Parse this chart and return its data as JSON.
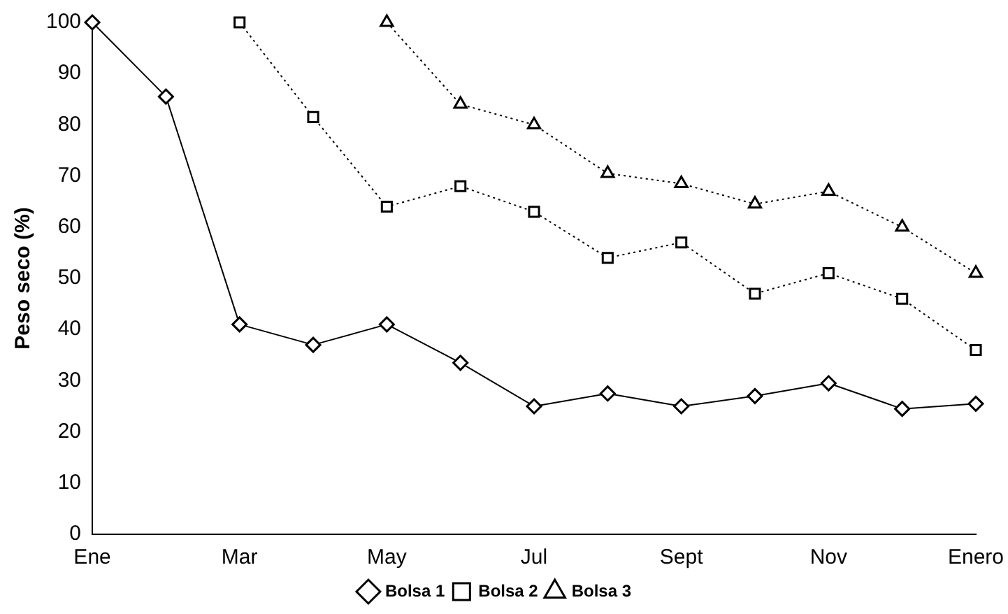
{
  "chart_data": {
    "type": "line",
    "ylabel": "Peso seco (%)",
    "categories": [
      "Ene",
      null,
      "Mar",
      null,
      "May",
      null,
      "Jul",
      null,
      "Sept",
      null,
      "Nov",
      null,
      "Enero"
    ],
    "ylim": [
      0,
      100
    ],
    "yticks": [
      0,
      10,
      20,
      30,
      40,
      50,
      60,
      70,
      80,
      90,
      100
    ],
    "grid": false,
    "legend": "bottom",
    "series": [
      {
        "name": "Bolsa 1",
        "color": "#000000",
        "marker": "diamond",
        "line_style": "solid",
        "values": [
          100,
          85.5,
          41,
          37,
          41,
          33.5,
          25,
          27.5,
          25,
          27,
          29.5,
          24.5,
          25.5
        ]
      },
      {
        "name": "Bolsa 2",
        "color": "#000000",
        "marker": "square",
        "line_style": "dotted",
        "values": [
          null,
          null,
          100,
          81.5,
          64,
          68,
          63,
          54,
          57,
          47,
          51,
          46,
          36
        ]
      },
      {
        "name": "Bolsa 3",
        "color": "#000000",
        "marker": "triangle",
        "line_style": "dotted",
        "values": [
          null,
          null,
          null,
          null,
          100,
          84,
          80,
          70.5,
          68.5,
          64.5,
          67,
          60,
          51
        ]
      }
    ]
  }
}
